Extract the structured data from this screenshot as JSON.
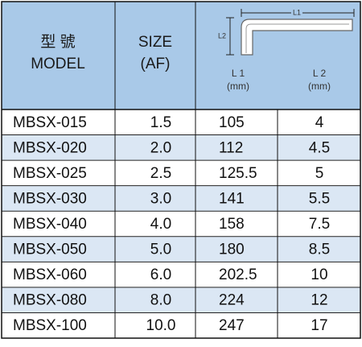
{
  "header": {
    "model_zh": "型 號",
    "model_en": "MODEL",
    "size": "SIZE",
    "size_unit": "(AF)",
    "diagram_l1": "L1",
    "diagram_l2": "L2",
    "l1": "L 1",
    "l1_unit": "(mm)",
    "l2": "L 2",
    "l2_unit": "(mm)"
  },
  "table": {
    "rows": [
      [
        "MBSX-015",
        "1.5",
        "105",
        "4"
      ],
      [
        "MBSX-020",
        "2.0",
        "112",
        "4.5"
      ],
      [
        "MBSX-025",
        "2.5",
        "125.5",
        "5"
      ],
      [
        "MBSX-030",
        "3.0",
        "141",
        "5.5"
      ],
      [
        "MBSX-040",
        "4.0",
        "158",
        "7.5"
      ],
      [
        "MBSX-050",
        "5.0",
        "180",
        "8.5"
      ],
      [
        "MBSX-060",
        "6.0",
        "202.5",
        "10"
      ],
      [
        "MBSX-080",
        "8.0",
        "224",
        "12"
      ],
      [
        "MBSX-100",
        "10.0",
        "247",
        "17"
      ]
    ]
  }
}
